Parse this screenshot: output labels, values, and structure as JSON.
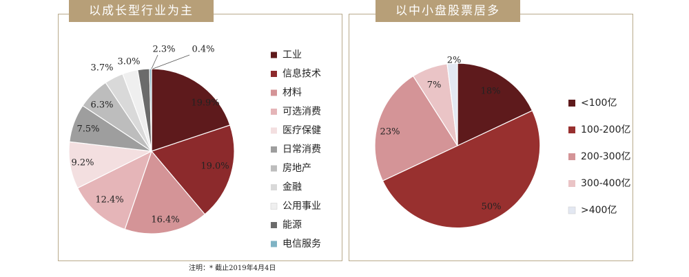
{
  "banners": {
    "left": "以成长型行业为主",
    "right": "以中小盘股票居多"
  },
  "footnote": "注明：* 截止2019年4月4日",
  "chart_data": [
    {
      "type": "pie",
      "title": "以成长型行业为主",
      "slices": [
        {
          "label": "工业",
          "value": 19.9,
          "text": "19.9%",
          "color": "#5e1a1c"
        },
        {
          "label": "信息技术",
          "value": 19.0,
          "text": "19.0%",
          "color": "#8c2a2c"
        },
        {
          "label": "材料",
          "value": 16.4,
          "text": "16.4%",
          "color": "#d49497"
        },
        {
          "label": "可选消费",
          "value": 12.4,
          "text": "12.4%",
          "color": "#e5b5b8"
        },
        {
          "label": "医疗保健",
          "value": 9.2,
          "text": "9.2%",
          "color": "#f3dfe0"
        },
        {
          "label": "日常消费",
          "value": 7.5,
          "text": "7.5%",
          "color": "#9e9e9e"
        },
        {
          "label": "房地产",
          "value": 6.3,
          "text": "6.3%",
          "color": "#bdbdbd"
        },
        {
          "label": "金融",
          "value": 3.7,
          "text": "3.7%",
          "color": "#d9d9d9"
        },
        {
          "label": "公用事业",
          "value": 3.0,
          "text": "3.0%",
          "color": "#efefef"
        },
        {
          "label": "能源",
          "value": 2.3,
          "text": "2.3%",
          "color": "#6b6b6b"
        },
        {
          "label": "电信服务",
          "value": 0.4,
          "text": "0.4%",
          "color": "#7fb3c4"
        }
      ],
      "legend_position": "right"
    },
    {
      "type": "pie",
      "title": "以中小盘股票居多",
      "slices": [
        {
          "label": "<100亿",
          "value": 18,
          "text": "18%",
          "color": "#5e1a1c"
        },
        {
          "label": "100-200亿",
          "value": 50,
          "text": "50%",
          "color": "#98302f"
        },
        {
          "label": "200-300亿",
          "value": 23,
          "text": "23%",
          "color": "#d49497"
        },
        {
          "label": "300-400亿",
          "value": 7,
          "text": "7%",
          "color": "#eac4c6"
        },
        {
          "label": ">400亿",
          "value": 2,
          "text": "2%",
          "color": "#e3e8f2"
        }
      ],
      "legend_position": "right"
    }
  ]
}
